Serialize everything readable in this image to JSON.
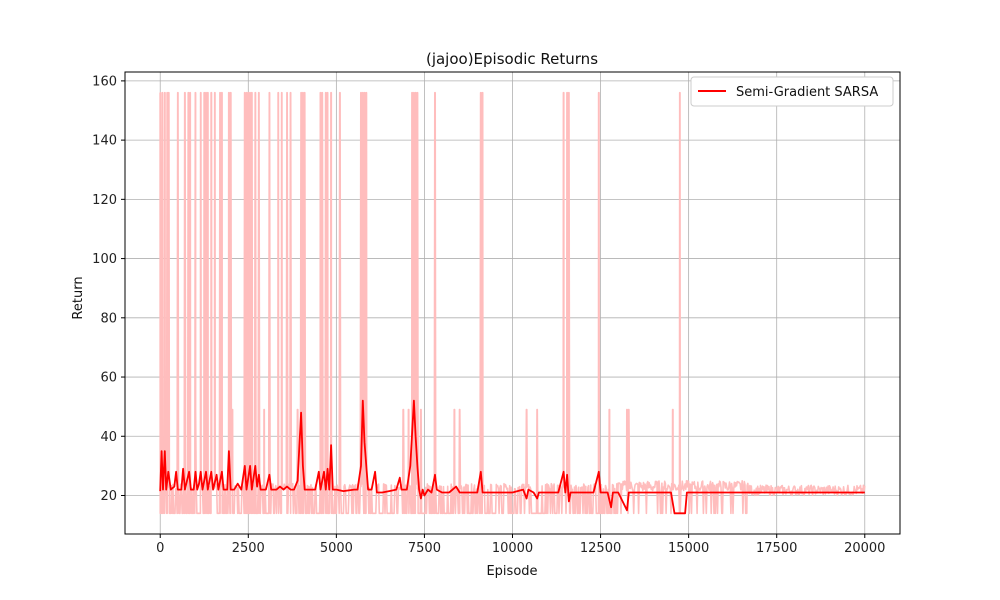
{
  "chart_data": {
    "type": "line",
    "title": "(jajoo)Episodic Returns",
    "xlabel": "Episode",
    "ylabel": "Return",
    "xlim": [
      -1000,
      21000
    ],
    "ylim": [
      7,
      163
    ],
    "x_ticks": [
      0,
      2500,
      5000,
      7500,
      10000,
      12500,
      15000,
      17500,
      20000
    ],
    "y_ticks": [
      20,
      40,
      60,
      80,
      100,
      120,
      140,
      160
    ],
    "grid": true,
    "legend_position": "top-right",
    "colors": {
      "raw": "#ffbdbd",
      "smoothed": "#ff0000",
      "grid": "#b0b0b0"
    },
    "series": [
      {
        "name": "",
        "role": "raw-returns",
        "band": [
          14,
          26
        ],
        "spike_values": [
          156,
          49
        ],
        "spikes_156": [
          0,
          60,
          130,
          200,
          240,
          500,
          700,
          800,
          850,
          1000,
          1150,
          1250,
          1300,
          1350,
          1450,
          1550,
          1700,
          1750,
          1950,
          2000,
          2400,
          2450,
          2500,
          2550,
          2600,
          2700,
          2800,
          3100,
          3350,
          3450,
          3600,
          3700,
          4000,
          4050,
          4100,
          4550,
          4600,
          4700,
          4750,
          4850,
          5100,
          5700,
          5750,
          5800,
          5850,
          7150,
          7200,
          7250,
          7300,
          7800,
          9100,
          9150,
          11450,
          11550,
          11600,
          12450,
          14750
        ],
        "spikes_49": [
          1000,
          2050,
          2950,
          3900,
          6900,
          7050,
          7400,
          8350,
          8500,
          10400,
          10700,
          12750,
          13250,
          13300,
          14550
        ]
      },
      {
        "name": "Semi-Gradient SARSA",
        "role": "smoothed",
        "points": [
          [
            0,
            21.5
          ],
          [
            40,
            35
          ],
          [
            80,
            22
          ],
          [
            130,
            35
          ],
          [
            170,
            22
          ],
          [
            230,
            28
          ],
          [
            300,
            22
          ],
          [
            400,
            23
          ],
          [
            450,
            28
          ],
          [
            500,
            22
          ],
          [
            600,
            22
          ],
          [
            650,
            29
          ],
          [
            700,
            22
          ],
          [
            820,
            28
          ],
          [
            870,
            22
          ],
          [
            950,
            22
          ],
          [
            1000,
            28
          ],
          [
            1050,
            22
          ],
          [
            1100,
            24
          ],
          [
            1150,
            28
          ],
          [
            1200,
            22
          ],
          [
            1300,
            28
          ],
          [
            1350,
            22
          ],
          [
            1450,
            28
          ],
          [
            1500,
            22
          ],
          [
            1600,
            27
          ],
          [
            1650,
            22
          ],
          [
            1750,
            28
          ],
          [
            1800,
            22
          ],
          [
            1900,
            22
          ],
          [
            1950,
            35
          ],
          [
            2000,
            22
          ],
          [
            2100,
            22
          ],
          [
            2200,
            24
          ],
          [
            2300,
            22
          ],
          [
            2400,
            30
          ],
          [
            2450,
            22
          ],
          [
            2550,
            30
          ],
          [
            2600,
            22
          ],
          [
            2700,
            30
          ],
          [
            2750,
            23
          ],
          [
            2800,
            27
          ],
          [
            2850,
            22
          ],
          [
            3000,
            22
          ],
          [
            3100,
            27
          ],
          [
            3150,
            22
          ],
          [
            3300,
            22
          ],
          [
            3400,
            23
          ],
          [
            3500,
            22
          ],
          [
            3600,
            23
          ],
          [
            3700,
            22
          ],
          [
            3800,
            22
          ],
          [
            3900,
            25
          ],
          [
            4000,
            48
          ],
          [
            4050,
            30
          ],
          [
            4100,
            22
          ],
          [
            4200,
            22
          ],
          [
            4400,
            22
          ],
          [
            4500,
            28
          ],
          [
            4550,
            22
          ],
          [
            4650,
            28
          ],
          [
            4700,
            22
          ],
          [
            4750,
            29
          ],
          [
            4800,
            22
          ],
          [
            4850,
            37
          ],
          [
            4900,
            22
          ],
          [
            5000,
            22
          ],
          [
            5200,
            21.5
          ],
          [
            5500,
            22
          ],
          [
            5600,
            22
          ],
          [
            5700,
            30
          ],
          [
            5750,
            52
          ],
          [
            5800,
            38
          ],
          [
            5850,
            30
          ],
          [
            5900,
            22
          ],
          [
            6000,
            22
          ],
          [
            6100,
            28
          ],
          [
            6150,
            21
          ],
          [
            6300,
            21
          ],
          [
            6500,
            21.5
          ],
          [
            6700,
            22
          ],
          [
            6800,
            26
          ],
          [
            6850,
            22
          ],
          [
            7000,
            22
          ],
          [
            7100,
            30
          ],
          [
            7200,
            52
          ],
          [
            7250,
            40
          ],
          [
            7300,
            30
          ],
          [
            7350,
            22
          ],
          [
            7400,
            19
          ],
          [
            7450,
            22
          ],
          [
            7500,
            20
          ],
          [
            7600,
            22
          ],
          [
            7700,
            21
          ],
          [
            7800,
            27
          ],
          [
            7850,
            22
          ],
          [
            8000,
            21
          ],
          [
            8200,
            21
          ],
          [
            8400,
            23
          ],
          [
            8500,
            21
          ],
          [
            8700,
            21
          ],
          [
            9000,
            21
          ],
          [
            9100,
            28
          ],
          [
            9150,
            21
          ],
          [
            9300,
            21
          ],
          [
            9600,
            21
          ],
          [
            10000,
            21
          ],
          [
            10300,
            22
          ],
          [
            10400,
            19
          ],
          [
            10450,
            22
          ],
          [
            10600,
            21
          ],
          [
            10700,
            19
          ],
          [
            10750,
            21
          ],
          [
            11000,
            21
          ],
          [
            11300,
            21
          ],
          [
            11450,
            28
          ],
          [
            11500,
            21
          ],
          [
            11550,
            27
          ],
          [
            11600,
            18
          ],
          [
            11650,
            21
          ],
          [
            12000,
            21
          ],
          [
            12300,
            21
          ],
          [
            12450,
            28
          ],
          [
            12500,
            21
          ],
          [
            12700,
            21
          ],
          [
            12800,
            16
          ],
          [
            12850,
            21
          ],
          [
            13000,
            21
          ],
          [
            13250,
            15
          ],
          [
            13300,
            21
          ],
          [
            13500,
            21
          ],
          [
            14000,
            21
          ],
          [
            14500,
            21
          ],
          [
            14600,
            14
          ],
          [
            14900,
            14
          ],
          [
            14950,
            21
          ],
          [
            15200,
            21
          ],
          [
            15500,
            21
          ],
          [
            16000,
            21
          ],
          [
            17000,
            21
          ],
          [
            18000,
            21
          ],
          [
            19000,
            21
          ],
          [
            20000,
            21
          ]
        ]
      }
    ]
  }
}
